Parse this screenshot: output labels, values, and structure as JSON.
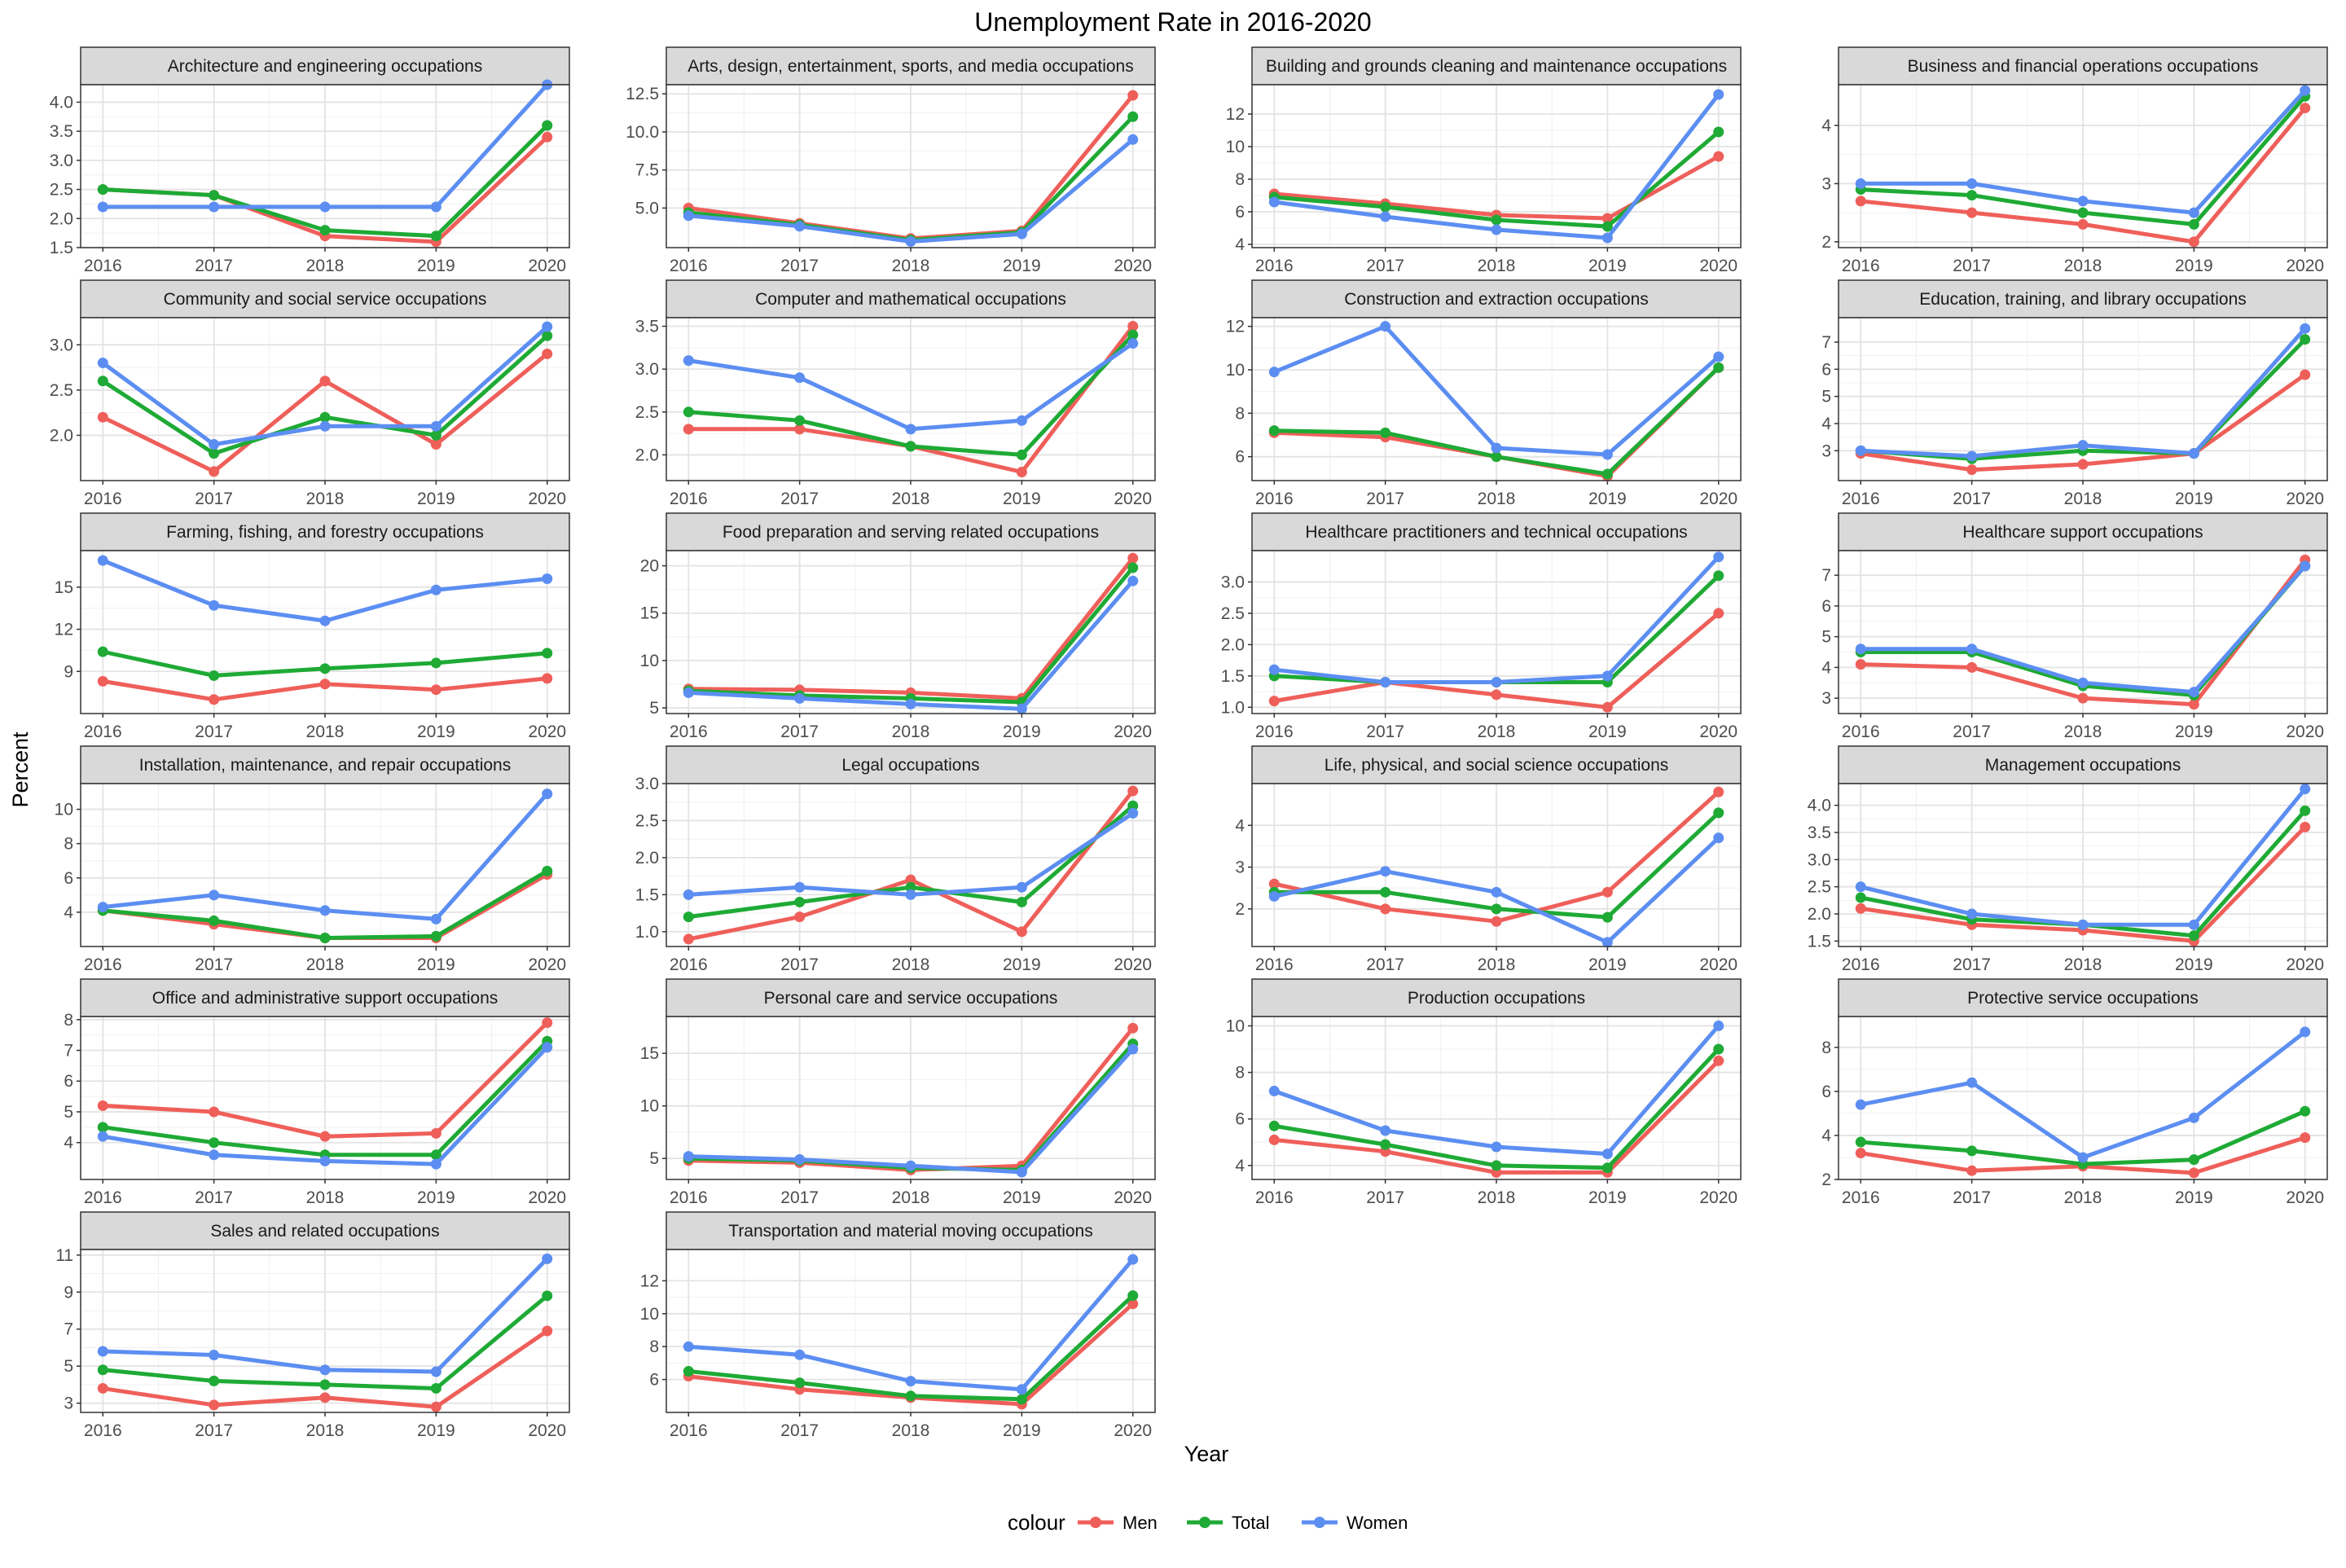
{
  "title": "Unemployment Rate in 2016-2020",
  "xlabel": "Year",
  "ylabel": "Percent",
  "legend": {
    "title": "colour",
    "items": [
      {
        "label": "Men",
        "color": "#ef5f5a"
      },
      {
        "label": "Total",
        "color": "#1eaa35"
      },
      {
        "label": "Women",
        "color": "#5c8ef2"
      }
    ],
    "position": "bottom"
  },
  "chart_data": {
    "type": "line",
    "x": [
      "2016",
      "2017",
      "2018",
      "2019",
      "2020"
    ],
    "series_names": [
      "Men",
      "Total",
      "Women"
    ],
    "colors": {
      "Men": "#ef5f5a",
      "Total": "#1eaa35",
      "Women": "#5c8ef2"
    },
    "grid": true,
    "panels": [
      {
        "title": "Architecture and engineering occupations",
        "ylim": [
          1.5,
          4.3
        ],
        "yticks": [
          1.5,
          2.0,
          2.5,
          3.0,
          3.5,
          4.0
        ],
        "tick_decimals": 1,
        "series": [
          {
            "name": "Men",
            "values": [
              2.5,
              2.4,
              1.7,
              1.6,
              3.4
            ]
          },
          {
            "name": "Total",
            "values": [
              2.5,
              2.4,
              1.8,
              1.7,
              3.6
            ]
          },
          {
            "name": "Women",
            "values": [
              2.2,
              2.2,
              2.2,
              2.2,
              4.3
            ]
          }
        ]
      },
      {
        "title": "Arts, design, entertainment, sports, and media occupations",
        "ylim": [
          2.4,
          13.1
        ],
        "yticks": [
          5.0,
          7.5,
          10.0,
          12.5
        ],
        "tick_decimals": 1,
        "series": [
          {
            "name": "Men",
            "values": [
              5.0,
              4.0,
              3.0,
              3.5,
              12.4
            ]
          },
          {
            "name": "Total",
            "values": [
              4.7,
              3.9,
              2.9,
              3.4,
              11.0
            ]
          },
          {
            "name": "Women",
            "values": [
              4.5,
              3.8,
              2.8,
              3.3,
              9.5
            ]
          }
        ]
      },
      {
        "title": "Building and grounds cleaning and maintenance occupations",
        "ylim": [
          3.8,
          13.8
        ],
        "yticks": [
          4,
          6,
          8,
          10,
          12
        ],
        "tick_decimals": 0,
        "series": [
          {
            "name": "Men",
            "values": [
              7.1,
              6.5,
              5.8,
              5.6,
              9.4
            ]
          },
          {
            "name": "Total",
            "values": [
              6.9,
              6.3,
              5.5,
              5.1,
              10.9
            ]
          },
          {
            "name": "Women",
            "values": [
              6.6,
              5.7,
              4.9,
              4.4,
              13.2
            ]
          }
        ]
      },
      {
        "title": "Business and financial operations occupations",
        "ylim": [
          1.9,
          4.7
        ],
        "yticks": [
          2,
          3,
          4
        ],
        "tick_decimals": 0,
        "series": [
          {
            "name": "Men",
            "values": [
              2.7,
              2.5,
              2.3,
              2.0,
              4.3
            ]
          },
          {
            "name": "Total",
            "values": [
              2.9,
              2.8,
              2.5,
              2.3,
              4.5
            ]
          },
          {
            "name": "Women",
            "values": [
              3.0,
              3.0,
              2.7,
              2.5,
              4.6
            ]
          }
        ]
      },
      {
        "title": "Community and social service occupations",
        "ylim": [
          1.5,
          3.3
        ],
        "yticks": [
          2.0,
          2.5,
          3.0
        ],
        "tick_decimals": 1,
        "series": [
          {
            "name": "Men",
            "values": [
              2.2,
              1.6,
              2.6,
              1.9,
              2.9
            ]
          },
          {
            "name": "Total",
            "values": [
              2.6,
              1.8,
              2.2,
              2.0,
              3.1
            ]
          },
          {
            "name": "Women",
            "values": [
              2.8,
              1.9,
              2.1,
              2.1,
              3.2
            ]
          }
        ]
      },
      {
        "title": "Computer and mathematical occupations",
        "ylim": [
          1.7,
          3.6
        ],
        "yticks": [
          2.0,
          2.5,
          3.0,
          3.5
        ],
        "tick_decimals": 1,
        "series": [
          {
            "name": "Men",
            "values": [
              2.3,
              2.3,
              2.1,
              1.8,
              3.5
            ]
          },
          {
            "name": "Total",
            "values": [
              2.5,
              2.4,
              2.1,
              2.0,
              3.4
            ]
          },
          {
            "name": "Women",
            "values": [
              3.1,
              2.9,
              2.3,
              2.4,
              3.3
            ]
          }
        ]
      },
      {
        "title": "Construction and extraction occupations",
        "ylim": [
          4.9,
          12.4
        ],
        "yticks": [
          6,
          8,
          10,
          12
        ],
        "tick_decimals": 0,
        "series": [
          {
            "name": "Men",
            "values": [
              7.1,
              6.9,
              6.0,
              5.1,
              10.1
            ]
          },
          {
            "name": "Total",
            "values": [
              7.2,
              7.1,
              6.0,
              5.2,
              10.1
            ]
          },
          {
            "name": "Women",
            "values": [
              9.9,
              12.0,
              6.4,
              6.1,
              10.6
            ]
          }
        ]
      },
      {
        "title": "Education, training, and library occupations",
        "ylim": [
          1.9,
          7.9
        ],
        "yticks": [
          3,
          4,
          5,
          6,
          7
        ],
        "tick_decimals": 0,
        "series": [
          {
            "name": "Men",
            "values": [
              2.9,
              2.3,
              2.5,
              2.9,
              5.8
            ]
          },
          {
            "name": "Total",
            "values": [
              3.0,
              2.7,
              3.0,
              2.9,
              7.1
            ]
          },
          {
            "name": "Women",
            "values": [
              3.0,
              2.8,
              3.2,
              2.9,
              7.5
            ]
          }
        ]
      },
      {
        "title": "Farming, fishing, and forestry occupations",
        "ylim": [
          6.0,
          17.6
        ],
        "yticks": [
          9,
          12,
          15
        ],
        "tick_decimals": 0,
        "series": [
          {
            "name": "Men",
            "values": [
              8.3,
              7.0,
              8.1,
              7.7,
              8.5
            ]
          },
          {
            "name": "Total",
            "values": [
              10.4,
              8.7,
              9.2,
              9.6,
              10.3
            ]
          },
          {
            "name": "Women",
            "values": [
              16.9,
              13.7,
              12.6,
              14.8,
              15.6
            ]
          }
        ]
      },
      {
        "title": "Food preparation and serving related occupations",
        "ylim": [
          4.4,
          21.6
        ],
        "yticks": [
          5,
          10,
          15,
          20
        ],
        "tick_decimals": 0,
        "series": [
          {
            "name": "Men",
            "values": [
              7.0,
              6.9,
              6.6,
              6.0,
              20.8
            ]
          },
          {
            "name": "Total",
            "values": [
              6.8,
              6.3,
              6.0,
              5.6,
              19.8
            ]
          },
          {
            "name": "Women",
            "values": [
              6.6,
              6.0,
              5.4,
              4.9,
              18.4
            ]
          }
        ]
      },
      {
        "title": "Healthcare practitioners and technical occupations",
        "ylim": [
          0.9,
          3.5
        ],
        "yticks": [
          1.0,
          1.5,
          2.0,
          2.5,
          3.0
        ],
        "tick_decimals": 1,
        "series": [
          {
            "name": "Men",
            "values": [
              1.1,
              1.4,
              1.2,
              1.0,
              2.5
            ]
          },
          {
            "name": "Total",
            "values": [
              1.5,
              1.4,
              1.4,
              1.4,
              3.1
            ]
          },
          {
            "name": "Women",
            "values": [
              1.6,
              1.4,
              1.4,
              1.5,
              3.4
            ]
          }
        ]
      },
      {
        "title": "Healthcare support occupations",
        "ylim": [
          2.5,
          7.8
        ],
        "yticks": [
          3,
          4,
          5,
          6,
          7
        ],
        "tick_decimals": 0,
        "series": [
          {
            "name": "Men",
            "values": [
              4.1,
              4.0,
              3.0,
              2.8,
              7.5
            ]
          },
          {
            "name": "Total",
            "values": [
              4.5,
              4.5,
              3.4,
              3.1,
              7.3
            ]
          },
          {
            "name": "Women",
            "values": [
              4.6,
              4.6,
              3.5,
              3.2,
              7.3
            ]
          }
        ]
      },
      {
        "title": "Installation, maintenance, and repair occupations",
        "ylim": [
          2.0,
          11.5
        ],
        "yticks": [
          4,
          6,
          8,
          10
        ],
        "tick_decimals": 0,
        "series": [
          {
            "name": "Men",
            "values": [
              4.1,
              3.3,
              2.5,
              2.5,
              6.2
            ]
          },
          {
            "name": "Total",
            "values": [
              4.1,
              3.5,
              2.5,
              2.6,
              6.4
            ]
          },
          {
            "name": "Women",
            "values": [
              4.3,
              5.0,
              4.1,
              3.6,
              10.9
            ]
          }
        ]
      },
      {
        "title": "Legal occupations",
        "ylim": [
          0.8,
          3.0
        ],
        "yticks": [
          1.0,
          1.5,
          2.0,
          2.5,
          3.0
        ],
        "tick_decimals": 1,
        "series": [
          {
            "name": "Men",
            "values": [
              0.9,
              1.2,
              1.7,
              1.0,
              2.9
            ]
          },
          {
            "name": "Total",
            "values": [
              1.2,
              1.4,
              1.6,
              1.4,
              2.7
            ]
          },
          {
            "name": "Women",
            "values": [
              1.5,
              1.6,
              1.5,
              1.6,
              2.6
            ]
          }
        ]
      },
      {
        "title": "Life, physical, and social science occupations",
        "ylim": [
          1.1,
          5.0
        ],
        "yticks": [
          2,
          3,
          4
        ],
        "tick_decimals": 0,
        "series": [
          {
            "name": "Men",
            "values": [
              2.6,
              2.0,
              1.7,
              2.4,
              4.8
            ]
          },
          {
            "name": "Total",
            "values": [
              2.4,
              2.4,
              2.0,
              1.8,
              4.3
            ]
          },
          {
            "name": "Women",
            "values": [
              2.3,
              2.9,
              2.4,
              1.2,
              3.7
            ]
          }
        ]
      },
      {
        "title": "Management occupations",
        "ylim": [
          1.4,
          4.4
        ],
        "yticks": [
          1.5,
          2.0,
          2.5,
          3.0,
          3.5,
          4.0
        ],
        "tick_decimals": 1,
        "series": [
          {
            "name": "Men",
            "values": [
              2.1,
              1.8,
              1.7,
              1.5,
              3.6
            ]
          },
          {
            "name": "Total",
            "values": [
              2.3,
              1.9,
              1.8,
              1.6,
              3.9
            ]
          },
          {
            "name": "Women",
            "values": [
              2.5,
              2.0,
              1.8,
              1.8,
              4.3
            ]
          }
        ]
      },
      {
        "title": "Office and administrative support occupations",
        "ylim": [
          2.8,
          8.1
        ],
        "yticks": [
          4,
          5,
          6,
          7,
          8
        ],
        "tick_decimals": 0,
        "series": [
          {
            "name": "Men",
            "values": [
              5.2,
              5.0,
              4.2,
              4.3,
              7.9
            ]
          },
          {
            "name": "Total",
            "values": [
              4.5,
              4.0,
              3.6,
              3.6,
              7.3
            ]
          },
          {
            "name": "Women",
            "values": [
              4.2,
              3.6,
              3.4,
              3.3,
              7.1
            ]
          }
        ]
      },
      {
        "title": "Personal care and service occupations",
        "ylim": [
          3.0,
          18.5
        ],
        "yticks": [
          5,
          10,
          15
        ],
        "tick_decimals": 0,
        "series": [
          {
            "name": "Men",
            "values": [
              4.8,
              4.6,
              3.9,
              4.3,
              17.4
            ]
          },
          {
            "name": "Total",
            "values": [
              5.0,
              4.8,
              4.1,
              3.9,
              15.9
            ]
          },
          {
            "name": "Women",
            "values": [
              5.2,
              4.9,
              4.3,
              3.7,
              15.4
            ]
          }
        ]
      },
      {
        "title": "Production occupations",
        "ylim": [
          3.4,
          10.4
        ],
        "yticks": [
          4,
          6,
          8,
          10
        ],
        "tick_decimals": 0,
        "series": [
          {
            "name": "Men",
            "values": [
              5.1,
              4.6,
              3.7,
              3.7,
              8.5
            ]
          },
          {
            "name": "Total",
            "values": [
              5.7,
              4.9,
              4.0,
              3.9,
              9.0
            ]
          },
          {
            "name": "Women",
            "values": [
              7.2,
              5.5,
              4.8,
              4.5,
              10.0
            ]
          }
        ]
      },
      {
        "title": "Protective service occupations",
        "ylim": [
          2.0,
          9.4
        ],
        "yticks": [
          2,
          4,
          6,
          8
        ],
        "tick_decimals": 0,
        "series": [
          {
            "name": "Men",
            "values": [
              3.2,
              2.4,
              2.6,
              2.3,
              3.9
            ]
          },
          {
            "name": "Total",
            "values": [
              3.7,
              3.3,
              2.7,
              2.9,
              5.1
            ]
          },
          {
            "name": "Women",
            "values": [
              5.4,
              6.4,
              3.0,
              4.8,
              8.7
            ]
          }
        ]
      },
      {
        "title": "Sales and related occupations",
        "ylim": [
          2.5,
          11.3
        ],
        "yticks": [
          3,
          5,
          7,
          9,
          11
        ],
        "tick_decimals": 0,
        "series": [
          {
            "name": "Men",
            "values": [
              3.8,
              2.9,
              3.3,
              2.8,
              6.9
            ]
          },
          {
            "name": "Total",
            "values": [
              4.8,
              4.2,
              4.0,
              3.8,
              8.8
            ]
          },
          {
            "name": "Women",
            "values": [
              5.8,
              5.6,
              4.8,
              4.7,
              10.8
            ]
          }
        ]
      },
      {
        "title": "Transportation and material moving occupations",
        "ylim": [
          4.0,
          13.9
        ],
        "yticks": [
          6,
          8,
          10,
          12
        ],
        "tick_decimals": 0,
        "series": [
          {
            "name": "Men",
            "values": [
              6.2,
              5.4,
              4.9,
              4.5,
              10.6
            ]
          },
          {
            "name": "Total",
            "values": [
              6.5,
              5.8,
              5.0,
              4.8,
              11.1
            ]
          },
          {
            "name": "Women",
            "values": [
              8.0,
              7.5,
              5.9,
              5.4,
              13.3
            ]
          }
        ]
      }
    ]
  }
}
